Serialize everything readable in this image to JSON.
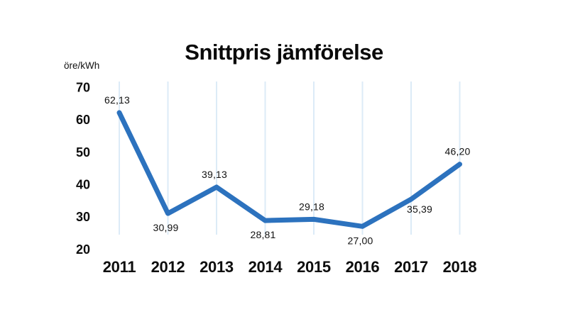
{
  "header": {
    "title": "Snittpris jämförelse"
  },
  "axis": {
    "unit_label": "öre/kWh"
  },
  "chart_data": {
    "type": "line",
    "title": "Snittpris jämförelse",
    "ylabel": "öre/kWh",
    "categories": [
      "2011",
      "2012",
      "2013",
      "2014",
      "2015",
      "2016",
      "2017",
      "2018"
    ],
    "series": [
      {
        "name": "Snittpris",
        "values": [
          62.13,
          30.99,
          39.13,
          28.81,
          29.18,
          27.0,
          35.39,
          46.2
        ]
      }
    ],
    "value_labels": [
      "62,13",
      "30,99",
      "39,13",
      "28,81",
      "29,18",
      "27,00",
      "35,39",
      "46,20"
    ],
    "value_label_positions": [
      "above",
      "below",
      "above",
      "below",
      "above",
      "below",
      "below-right",
      "above"
    ],
    "yticks": [
      20,
      30,
      40,
      50,
      60,
      70
    ],
    "ylim": [
      20,
      70
    ],
    "grid": "vertical-only",
    "legend": "none",
    "colors": {
      "line": "#2C72BE",
      "grid": "#DCEBF7",
      "text": "#0d0d0d"
    }
  }
}
